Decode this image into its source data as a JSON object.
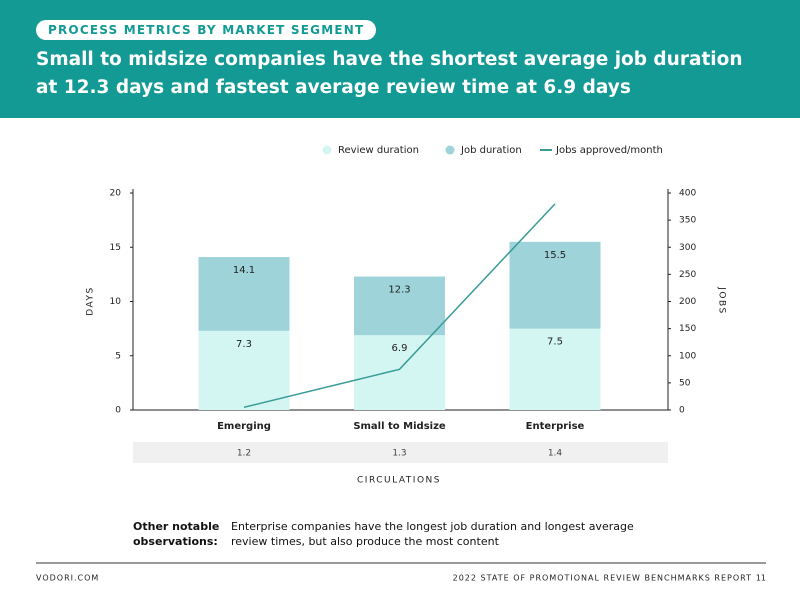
{
  "header": {
    "badge": "PROCESS METRICS BY MARKET SEGMENT",
    "title": "Small to midsize companies have the shortest average job duration at 12.3 days and fastest average review time at 6.9 days"
  },
  "chart_data": {
    "type": "bar",
    "bar_mode": "overlay",
    "legend": "top",
    "categories": [
      "Emerging",
      "Small to Midsize",
      "Enterprise"
    ],
    "series": [
      {
        "name": "Review duration",
        "color": "#d3f6f2",
        "values": [
          7.3,
          6.9,
          7.5
        ]
      },
      {
        "name": "Job duration",
        "color": "#9ed3da",
        "values": [
          14.1,
          12.3,
          15.5
        ]
      },
      {
        "name": "Jobs approved/month",
        "type": "line",
        "axis": "y2",
        "color": "#3a9b98",
        "values": [
          5,
          75,
          380
        ]
      }
    ],
    "ylabel": "DAYS",
    "ylim": [
      0,
      20
    ],
    "yticks": [
      0,
      5,
      10,
      15,
      20
    ],
    "y2label": "JOBS",
    "y2lim": [
      0,
      400
    ],
    "y2ticks": [
      0,
      50,
      100,
      150,
      200,
      250,
      300,
      350,
      400
    ],
    "circulations": {
      "label": "CIRCULATIONS",
      "values": [
        "1.2",
        "1.3",
        "1.4"
      ]
    }
  },
  "observations": {
    "label": "Other notable observations:",
    "text": "Enterprise companies have the longest job duration and longest average review times, but also produce the most content"
  },
  "footer": {
    "site": "VODORI.COM",
    "report": "2022 STATE OF PROMOTIONAL REVIEW BENCHMARKS REPORT",
    "page": "11"
  }
}
